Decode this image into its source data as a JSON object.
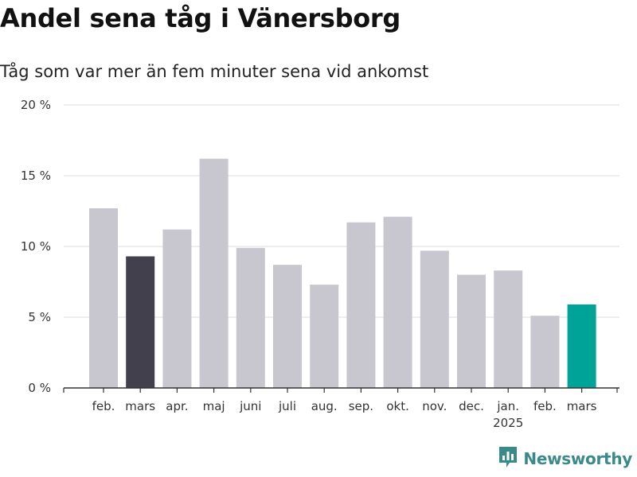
{
  "title": "Andel sena tåg i Vänersborg",
  "subtitle": "Tåg som var mer än fem minuter sena vid ankomst",
  "brand": {
    "name": "Newsworthy",
    "icon": "newsworthy-logo-icon",
    "color": "#3a8a8c"
  },
  "colors": {
    "default_bar": "#c8c7d0",
    "previous_year_bar": "#42404c",
    "current_bar": "#00a398",
    "grid": "#dddddd",
    "axis": "#333333"
  },
  "chart_data": {
    "type": "bar",
    "title": "Andel sena tåg i Vänersborg",
    "subtitle": "Tåg som var mer än fem minuter sena vid ankomst",
    "xlabel": "",
    "ylabel": "",
    "ylim": [
      0,
      20
    ],
    "yticks": [
      0,
      5,
      10,
      15,
      20
    ],
    "ytick_labels": [
      "0 %",
      "5 %",
      "10 %",
      "15 %",
      "20 %"
    ],
    "grid": true,
    "categories": [
      "feb.",
      "mars",
      "apr.",
      "maj",
      "juni",
      "juli",
      "aug.",
      "sep.",
      "okt.",
      "nov.",
      "dec.",
      "jan.",
      "feb.",
      "mars"
    ],
    "year_labels": [
      "",
      "",
      "",
      "",
      "",
      "",
      "",
      "",
      "",
      "",
      "",
      "2025",
      "",
      ""
    ],
    "values": [
      12.7,
      9.3,
      11.2,
      16.2,
      9.9,
      8.7,
      7.3,
      11.7,
      12.1,
      9.7,
      8.0,
      8.3,
      5.1,
      5.9
    ],
    "highlight": [
      "default",
      "previous_year",
      "default",
      "default",
      "default",
      "default",
      "default",
      "default",
      "default",
      "default",
      "default",
      "default",
      "default",
      "current"
    ]
  }
}
